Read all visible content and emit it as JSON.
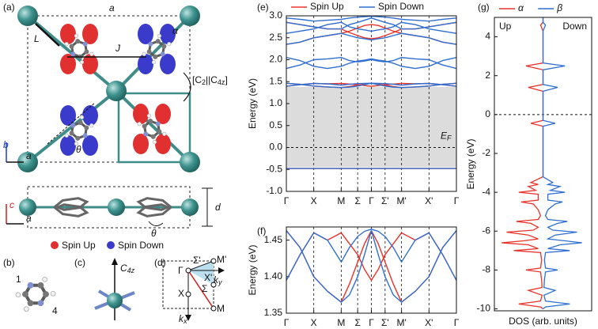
{
  "panel_a": {
    "label": "(a)",
    "lattice": "a",
    "L": "L",
    "alpha": "α",
    "J": "J",
    "symmetry": {
      "open": "[C",
      "sub1": "2",
      "mid": "||C",
      "sub2": "4z",
      "close": "]"
    },
    "theta": "θ",
    "axis_b": "b",
    "axis_a": "a",
    "axis_c": "c",
    "axis_a2": "a",
    "d": "d",
    "theta2": "θ",
    "legend": [
      "Spin Up",
      "Spin Down"
    ]
  },
  "panel_b": {
    "label": "(b)",
    "site1": "1",
    "site4": "4"
  },
  "panel_c": {
    "label": "(c)",
    "axis": {
      "main": "C",
      "sub": "4z"
    }
  },
  "panel_d": {
    "label": "(d)",
    "points": [
      "M'",
      "Σ'",
      "X'",
      "Γ",
      "Σ",
      "X",
      "M"
    ],
    "ky": {
      "main": "k",
      "sub": "y"
    },
    "kx": {
      "main": "k",
      "sub": "x"
    }
  },
  "chart_data": [
    {
      "type": "line",
      "panel": "(e)",
      "ylabel": "Energy (eV)",
      "legend": "top",
      "grid": true,
      "xlim": [
        0,
        6.2
      ],
      "ylim": [
        -1.0,
        3.0
      ],
      "xticks": [
        {
          "value": 0,
          "label": "Γ"
        },
        {
          "value": 1,
          "label": "X"
        },
        {
          "value": 2,
          "label": "M"
        },
        {
          "value": 2.6,
          "label": "Σ"
        },
        {
          "value": 3.1,
          "label": "Γ"
        },
        {
          "value": 3.6,
          "label": "Σ'"
        },
        {
          "value": 4.2,
          "label": "M'"
        },
        {
          "value": 5.2,
          "label": "X'"
        },
        {
          "value": 6.2,
          "label": "Γ"
        }
      ],
      "yticks": [
        {
          "value": -1.0,
          "label": "-1.0"
        },
        -0.5,
        {
          "value": 0,
          "label": "0.0"
        },
        0.5,
        {
          "value": 1.0,
          "label": "1.0"
        },
        1.5,
        {
          "value": 2.0,
          "label": "2.0"
        },
        2.5,
        {
          "value": 3.0,
          "label": "3.0"
        }
      ],
      "shade": [
        -0.45,
        1.38
      ],
      "fermi_level": 0,
      "annotation": {
        "main": "E",
        "sub": "F"
      },
      "x": [
        0,
        0.5,
        1,
        1.5,
        2,
        2.3,
        2.6,
        2.85,
        3.1,
        3.35,
        3.6,
        3.9,
        4.2,
        4.7,
        5.2,
        5.7,
        6.2
      ],
      "series": [
        {
          "name": "Spin Up",
          "color": "#e8332a",
          "bands": [
            [
              -0.48,
              -0.48,
              -0.48,
              -0.48,
              -0.48,
              -0.48,
              -0.48,
              -0.48,
              -0.48,
              -0.48,
              -0.48,
              -0.48,
              -0.48,
              -0.48,
              -0.48,
              -0.48,
              -0.48
            ],
            [
              1.395,
              1.43,
              1.46,
              1.45,
              1.46,
              1.445,
              1.43,
              1.41,
              1.395,
              1.41,
              1.43,
              1.445,
              1.46,
              1.45,
              1.46,
              1.43,
              1.395
            ],
            [
              1.463,
              1.44,
              1.4,
              1.38,
              1.365,
              1.39,
              1.42,
              1.445,
              1.463,
              1.445,
              1.42,
              1.39,
              1.365,
              1.38,
              1.4,
              1.44,
              1.463
            ],
            [
              2.35,
              2.4,
              2.5,
              2.55,
              2.6,
              2.65,
              2.72,
              2.78,
              2.8,
              2.78,
              2.72,
              2.65,
              2.6,
              2.55,
              2.5,
              2.4,
              2.35
            ],
            [
              2.85,
              2.8,
              2.75,
              2.7,
              2.7,
              2.62,
              2.55,
              2.5,
              2.48,
              2.5,
              2.55,
              2.62,
              2.7,
              2.7,
              2.75,
              2.8,
              2.85
            ]
          ]
        },
        {
          "name": "Spin Down",
          "color": "#2f6fd1",
          "bands": [
            [
              -0.48,
              -0.48,
              -0.48,
              -0.48,
              -0.48,
              -0.48,
              -0.48,
              -0.48,
              -0.48,
              -0.48,
              -0.48,
              -0.48,
              -0.48,
              -0.48,
              -0.48,
              -0.48,
              -0.48
            ],
            [
              1.463,
              1.44,
              1.4,
              1.38,
              1.365,
              1.375,
              1.4,
              1.43,
              1.463,
              1.43,
              1.4,
              1.375,
              1.365,
              1.38,
              1.4,
              1.44,
              1.463
            ],
            [
              1.395,
              1.43,
              1.46,
              1.45,
              1.42,
              1.44,
              1.455,
              1.462,
              1.465,
              1.462,
              1.455,
              1.44,
              1.42,
              1.45,
              1.46,
              1.43,
              1.395
            ],
            [
              1.8,
              1.88,
              2.0,
              2.02,
              2.05,
              1.98,
              1.95,
              1.97,
              2.0,
              1.97,
              1.95,
              1.98,
              2.05,
              2.02,
              2.0,
              1.88,
              1.8
            ],
            [
              2.05,
              1.98,
              1.85,
              1.8,
              1.85,
              1.92,
              1.97,
              1.99,
              2.02,
              1.99,
              1.97,
              1.92,
              1.85,
              1.8,
              1.85,
              1.98,
              2.05
            ],
            [
              2.35,
              2.4,
              2.5,
              2.55,
              2.6,
              2.55,
              2.5,
              2.48,
              2.45,
              2.48,
              2.5,
              2.55,
              2.6,
              2.55,
              2.5,
              2.4,
              2.35
            ],
            [
              2.6,
              2.65,
              2.7,
              2.8,
              2.85,
              2.75,
              2.7,
              2.68,
              2.65,
              2.68,
              2.7,
              2.75,
              2.85,
              2.8,
              2.7,
              2.65,
              2.6
            ],
            [
              2.85,
              2.8,
              2.75,
              2.7,
              2.7,
              2.8,
              2.85,
              2.9,
              2.95,
              2.9,
              2.85,
              2.8,
              2.7,
              2.7,
              2.75,
              2.8,
              2.85
            ],
            [
              2.95,
              2.92,
              2.88,
              2.9,
              2.92,
              2.95,
              2.97,
              2.98,
              2.99,
              2.98,
              2.97,
              2.95,
              2.92,
              2.9,
              2.88,
              2.92,
              2.95
            ]
          ]
        }
      ]
    },
    {
      "type": "line",
      "panel": "(f)",
      "ylabel": "Energy (eV)",
      "grid": true,
      "xlim": [
        0,
        6.2
      ],
      "ylim": [
        1.35,
        1.468
      ],
      "xticks": [
        {
          "value": 0,
          "label": "Γ"
        },
        {
          "value": 1,
          "label": "X"
        },
        {
          "value": 2,
          "label": "M"
        },
        {
          "value": 2.6,
          "label": "Σ"
        },
        {
          "value": 3.1,
          "label": "Γ"
        },
        {
          "value": 3.6,
          "label": "Σ'"
        },
        {
          "value": 4.2,
          "label": "M'"
        },
        {
          "value": 5.2,
          "label": "X'"
        },
        {
          "value": 6.2,
          "label": "Γ"
        }
      ],
      "yticks": [
        1.35,
        {
          "value": 1.4,
          "label": "1.40"
        },
        1.45
      ],
      "x": [
        0,
        0.5,
        1,
        1.5,
        2,
        2.3,
        2.6,
        2.85,
        3.1,
        3.35,
        3.6,
        3.9,
        4.2,
        4.7,
        5.2,
        5.7,
        6.2
      ],
      "series": [
        {
          "color": "#e8332a",
          "bands": [
            [
              1.395,
              1.43,
              1.46,
              1.45,
              1.46,
              1.445,
              1.43,
              1.41,
              1.395,
              1.41,
              1.43,
              1.445,
              1.46,
              1.45,
              1.46,
              1.43,
              1.395
            ],
            [
              1.463,
              1.44,
              1.4,
              1.38,
              1.365,
              1.39,
              1.42,
              1.445,
              1.463,
              1.445,
              1.42,
              1.39,
              1.365,
              1.38,
              1.4,
              1.44,
              1.463
            ]
          ]
        },
        {
          "color": "#2f6fd1",
          "bands": [
            [
              1.463,
              1.44,
              1.4,
              1.38,
              1.365,
              1.375,
              1.4,
              1.43,
              1.463,
              1.43,
              1.4,
              1.375,
              1.365,
              1.38,
              1.4,
              1.44,
              1.463
            ],
            [
              1.395,
              1.43,
              1.46,
              1.45,
              1.42,
              1.44,
              1.455,
              1.462,
              1.465,
              1.462,
              1.455,
              1.44,
              1.42,
              1.45,
              1.46,
              1.43,
              1.395
            ]
          ]
        }
      ]
    },
    {
      "type": "line",
      "orientation": "horizontal",
      "panel": "(g)",
      "ylabel": "Energy (eV)",
      "xlabel": "DOS (arb. units)",
      "legend": "top",
      "annotations": [
        "Up",
        "Down"
      ],
      "fermi_level": 0,
      "xlim": [
        -1,
        1
      ],
      "ylim": [
        -10.1,
        5
      ],
      "yticks": [
        -10,
        -8,
        -6,
        -4,
        -2,
        0,
        2,
        4
      ],
      "y": [
        -10,
        -9.9,
        -9.75,
        -9.6,
        -9.3,
        -9.05,
        -8.9,
        -8.5,
        -8.1,
        -8.0,
        -7.9,
        -7.5,
        -7.1,
        -7.0,
        -6.9,
        -6.7,
        -6.6,
        -6.5,
        -6.4,
        -6.2,
        -6.05,
        -5.95,
        -5.8,
        -5.6,
        -5.5,
        -5.4,
        -5.2,
        -4.9,
        -4.6,
        -4.5,
        -4.4,
        -4.1,
        -4.0,
        -3.9,
        -3.7,
        -3.6,
        -3.5,
        -3.2,
        -0.6,
        -0.45,
        -0.3,
        1.2,
        1.4,
        1.55,
        2.3,
        2.5,
        2.65,
        4.3,
        4.6,
        4.75,
        5
      ],
      "series": [
        {
          "name": "α",
          "color": "#e8332a",
          "values": [
            0,
            -0.05,
            -0.5,
            -0.05,
            -0.02,
            -0.3,
            -0.02,
            -0.03,
            -0.05,
            -0.35,
            -0.05,
            -0.03,
            -0.05,
            -0.6,
            -0.1,
            -0.3,
            -0.85,
            -0.4,
            -0.1,
            -0.3,
            -0.75,
            -0.2,
            -0.1,
            -0.25,
            -0.55,
            -0.1,
            -0.05,
            -0.1,
            -0.2,
            -0.45,
            -0.1,
            -0.1,
            -0.5,
            -0.15,
            -0.3,
            -0.1,
            -0.25,
            0,
            0,
            -0.25,
            0,
            0,
            -0.3,
            0,
            0,
            -0.35,
            0,
            0,
            -0.05,
            0,
            0
          ]
        },
        {
          "name": "β",
          "color": "#2f6fd1",
          "values": [
            0,
            0.05,
            0.55,
            0.05,
            0.02,
            0.25,
            0.02,
            0.03,
            0.05,
            0.3,
            0.05,
            0.03,
            0.05,
            0.55,
            0.1,
            0.35,
            0.8,
            0.45,
            0.1,
            0.25,
            0.7,
            0.2,
            0.1,
            0.3,
            0.5,
            0.1,
            0.05,
            0.1,
            0.25,
            0.4,
            0.1,
            0.1,
            0.45,
            0.15,
            0.35,
            0.1,
            0.2,
            0,
            0,
            0.25,
            0,
            0,
            0.3,
            0,
            0,
            0.45,
            0,
            0,
            0.05,
            0,
            0
          ]
        }
      ]
    }
  ]
}
